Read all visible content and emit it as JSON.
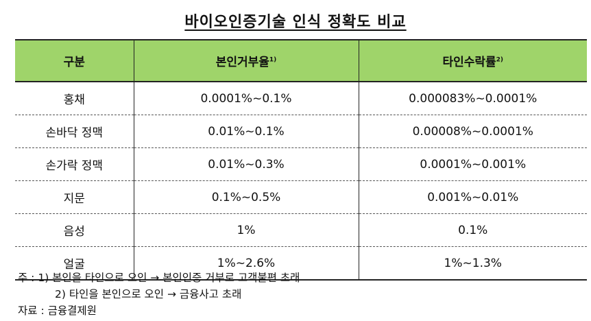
{
  "title": "바이오인증기술 인식 정확도 비교",
  "table": {
    "headers": [
      {
        "label": "구분",
        "sup": ""
      },
      {
        "label": "본인거부율",
        "sup": "1)"
      },
      {
        "label": "타인수락률",
        "sup": "2)"
      }
    ],
    "rows": [
      [
        "홍채",
        "0.0001%~0.1%",
        "0.000083%~0.0001%"
      ],
      [
        "손바닥 정맥",
        "0.01%~0.1%",
        "0.00008%~0.0001%"
      ],
      [
        "손가락 정맥",
        "0.01%~0.3%",
        "0.0001%~0.001%"
      ],
      [
        "지문",
        "0.1%~0.5%",
        "0.001%~0.01%"
      ],
      [
        "음성",
        "1%",
        "0.1%"
      ],
      [
        "얼굴",
        "1%~2.6%",
        "1%~1.3%"
      ]
    ]
  },
  "notes": {
    "line1": "주 : 1) 본인을 타인으로 오인 → 본인인증 거부로 고객불편 초래",
    "line2": "2) 타인을 본인으로 오인 → 금융사고 초래"
  },
  "source": "자료 : 금융결제원"
}
